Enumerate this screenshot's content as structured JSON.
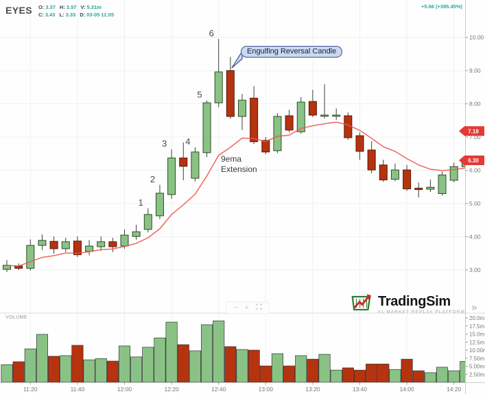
{
  "header": {
    "symbol": "EYES",
    "line1": [
      {
        "label": "O:",
        "value": "3.37"
      },
      {
        "label": "H:",
        "value": "3.57"
      },
      {
        "label": "V:",
        "value": "5.31m"
      }
    ],
    "line2": [
      {
        "label": "C:",
        "value": "3.43"
      },
      {
        "label": "L:",
        "value": "3.33"
      },
      {
        "label": "D:",
        "value": "03-05 11:05"
      }
    ],
    "change": "+5.66 (+395.45%)"
  },
  "volume_pane": {
    "title": "VOLUME"
  },
  "controls": {
    "zoom_out": "−",
    "zoom_in": "+"
  },
  "logo": {
    "name": "TradingSim",
    "tagline": "#1 MARKET REPLAY PLATFORM",
    "chevron": "»"
  },
  "colors": {
    "up_fill": "#8ac286",
    "up_border": "#2c4c22",
    "down_fill": "#b63310",
    "down_border": "#571505",
    "ema_line": "#f05350",
    "tag_bg": "#e53935",
    "tag_text": "#ffffff",
    "grid": "#f0f0f0",
    "axis_line": "#c9c9c9",
    "axis_text": "#767676",
    "wick": "#3c3c3c",
    "accent_teal": "#26a69a"
  },
  "chart_data": {
    "type": "candlestick",
    "title": "EYES 5-minute chart with 9ema and volume",
    "times": [
      "11:10",
      "11:15",
      "11:20",
      "11:25",
      "11:30",
      "11:35",
      "11:40",
      "11:45",
      "11:50",
      "11:55",
      "12:00",
      "12:05",
      "12:10",
      "12:15",
      "12:20",
      "12:25",
      "12:30",
      "12:35",
      "12:40",
      "12:45",
      "12:50",
      "12:55",
      "13:00",
      "13:05",
      "13:10",
      "13:15",
      "13:20",
      "13:25",
      "13:30",
      "13:35",
      "13:40",
      "13:45",
      "13:50",
      "13:55",
      "14:00",
      "14:05",
      "14:10",
      "14:15",
      "14:20",
      "14:25"
    ],
    "ohlcv": [
      [
        3.02,
        3.3,
        2.94,
        3.14,
        5.5
      ],
      [
        3.12,
        3.2,
        3.0,
        3.05,
        6.4
      ],
      [
        3.05,
        3.92,
        2.98,
        3.74,
        10.4
      ],
      [
        3.74,
        4.07,
        3.6,
        3.89,
        14.9
      ],
      [
        3.86,
        4.01,
        3.49,
        3.64,
        8.1
      ],
      [
        3.64,
        3.97,
        3.54,
        3.85,
        8.3
      ],
      [
        3.87,
        4.01,
        3.39,
        3.46,
        11.5
      ],
      [
        3.56,
        3.9,
        3.44,
        3.72,
        7.0
      ],
      [
        3.7,
        4.01,
        3.58,
        3.85,
        7.4
      ],
      [
        3.85,
        3.97,
        3.54,
        3.7,
        6.6
      ],
      [
        3.72,
        4.22,
        3.64,
        4.05,
        11.3
      ],
      [
        4.01,
        4.36,
        3.91,
        4.15,
        7.9
      ],
      [
        4.22,
        4.86,
        4.13,
        4.67,
        10.9
      ],
      [
        4.63,
        5.56,
        4.53,
        5.31,
        13.8
      ],
      [
        5.27,
        6.63,
        5.14,
        6.37,
        18.7
      ],
      [
        6.37,
        6.84,
        5.7,
        6.12,
        11.7
      ],
      [
        5.76,
        6.69,
        5.66,
        6.55,
        9.8
      ],
      [
        6.53,
        8.1,
        6.4,
        8.03,
        17.9
      ],
      [
        8.03,
        9.95,
        7.9,
        8.96,
        19.1
      ],
      [
        9.0,
        9.41,
        7.55,
        7.62,
        11.1
      ],
      [
        7.62,
        8.3,
        7.21,
        8.11,
        10.2
      ],
      [
        8.17,
        8.53,
        6.79,
        6.86,
        10.0
      ],
      [
        6.9,
        7.0,
        6.48,
        6.55,
        5.1
      ],
      [
        6.59,
        7.72,
        6.52,
        7.62,
        8.9
      ],
      [
        7.64,
        7.82,
        7.14,
        7.21,
        5.1
      ],
      [
        7.16,
        8.2,
        7.1,
        8.05,
        8.3
      ],
      [
        8.07,
        8.42,
        7.6,
        7.66,
        7.2
      ],
      [
        7.63,
        8.59,
        7.56,
        7.66,
        8.7
      ],
      [
        7.64,
        7.86,
        7.52,
        7.66,
        3.8
      ],
      [
        7.64,
        7.74,
        6.92,
        6.98,
        4.5
      ],
      [
        7.04,
        7.14,
        6.32,
        6.57,
        3.8
      ],
      [
        6.61,
        6.88,
        5.91,
        6.01,
        5.7
      ],
      [
        6.16,
        6.32,
        5.65,
        5.71,
        5.7
      ],
      [
        5.73,
        6.2,
        5.67,
        6.01,
        4.0
      ],
      [
        6.01,
        6.16,
        5.38,
        5.44,
        7.2
      ],
      [
        5.46,
        5.63,
        5.18,
        5.42,
        3.6
      ],
      [
        5.43,
        5.72,
        5.35,
        5.49,
        3.0
      ],
      [
        5.3,
        5.96,
        5.24,
        5.86,
        4.7
      ],
      [
        5.7,
        6.23,
        5.64,
        6.11,
        3.6
      ],
      [
        6.11,
        6.48,
        6.0,
        6.3,
        6.5
      ]
    ],
    "ema9": [
      3.14,
      3.12,
      3.25,
      3.38,
      3.43,
      3.51,
      3.5,
      3.55,
      3.61,
      3.63,
      3.71,
      3.8,
      3.97,
      4.24,
      4.67,
      4.96,
      5.28,
      5.83,
      6.45,
      6.69,
      6.97,
      6.95,
      6.87,
      7.02,
      7.06,
      7.26,
      7.34,
      7.4,
      7.45,
      7.36,
      7.2,
      6.96,
      6.71,
      6.57,
      6.35,
      6.16,
      6.03,
      5.99,
      6.02,
      6.07
    ],
    "price_axis": {
      "ticks": [
        {
          "value": 10,
          "label": "10.00"
        },
        {
          "value": 9,
          "label": "9.00"
        },
        {
          "value": 8,
          "label": "8.00"
        },
        {
          "value": 7,
          "label": "7.00"
        },
        {
          "value": 6,
          "label": "6.00"
        },
        {
          "value": 5,
          "label": "5.00"
        },
        {
          "value": 4,
          "label": "4.00"
        },
        {
          "value": 3,
          "label": "3.00"
        }
      ],
      "tags": [
        {
          "price": 7.18,
          "label": "7.18"
        },
        {
          "price": 6.3,
          "label": "6.30"
        }
      ]
    },
    "volume_axis": {
      "ticks": [
        {
          "value": 20,
          "label": "20.0m"
        },
        {
          "value": 17.5,
          "label": "17.5m"
        },
        {
          "value": 15,
          "label": "15.0m"
        },
        {
          "value": 12.5,
          "label": "12.5m"
        },
        {
          "value": 10,
          "label": "10.00m"
        },
        {
          "value": 7.5,
          "label": "7.50m"
        },
        {
          "value": 5,
          "label": "5.00m"
        },
        {
          "value": 2.5,
          "label": "2.50m"
        }
      ]
    },
    "time_ticks": [
      {
        "index": 2,
        "label": "11:20"
      },
      {
        "index": 6,
        "label": "11:40"
      },
      {
        "index": 10,
        "label": "12:00"
      },
      {
        "index": 14,
        "label": "12:20"
      },
      {
        "index": 18,
        "label": "12:40"
      },
      {
        "index": 22,
        "label": "13:00"
      },
      {
        "index": 26,
        "label": "13:20"
      },
      {
        "index": 30,
        "label": "13:40"
      },
      {
        "index": 34,
        "label": "14:00"
      },
      {
        "index": 38,
        "label": "14:20"
      }
    ],
    "annotations": {
      "engulfing": {
        "text": "Engulfing Reversal Candle",
        "candle_index": 19
      },
      "ema_note": {
        "line1": "9ema",
        "line2": "Extension"
      },
      "candle_numbers": [
        {
          "label": "1",
          "candle_index": 12
        },
        {
          "label": "2",
          "candle_index": 13
        },
        {
          "label": "3",
          "candle_index": 14
        },
        {
          "label": "4",
          "candle_index": 16
        },
        {
          "label": "5",
          "candle_index": 17
        },
        {
          "label": "6",
          "candle_index": 18
        }
      ]
    }
  }
}
